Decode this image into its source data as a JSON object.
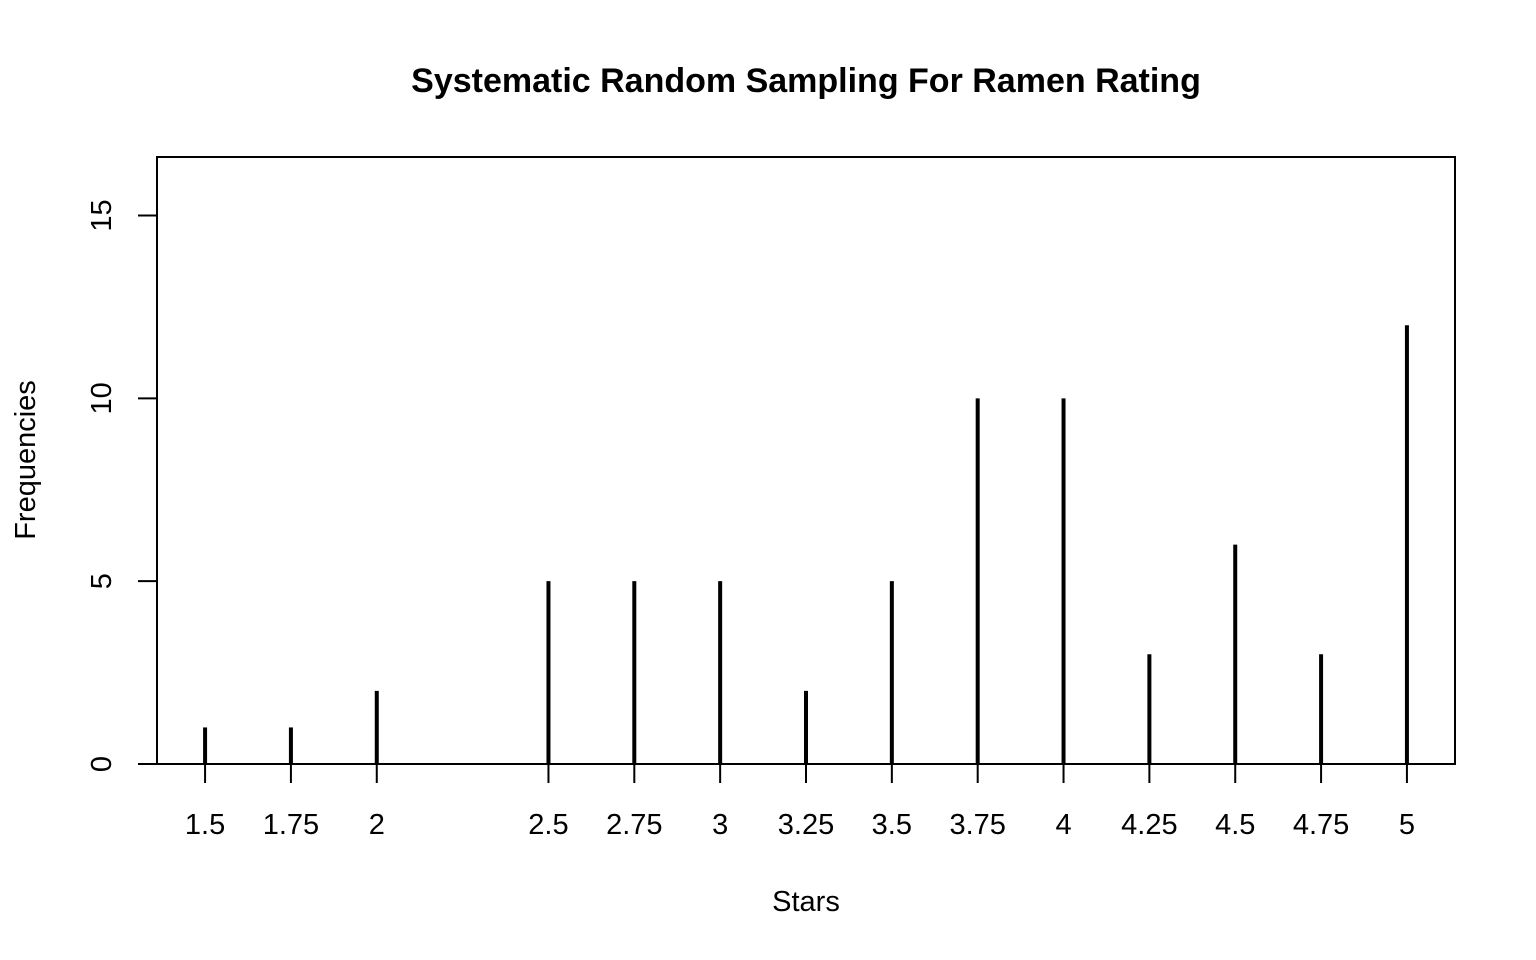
{
  "chart_data": {
    "type": "bar",
    "title": "Systematic Random Sampling For Ramen Rating",
    "xlabel": "Stars",
    "ylabel": "Frequencies",
    "x": [
      1.5,
      1.75,
      2,
      2.5,
      2.75,
      3,
      3.25,
      3.5,
      3.75,
      4,
      4.25,
      4.5,
      4.75,
      5
    ],
    "x_tick_labels": [
      "1.5",
      "1.75",
      "2",
      "2.5",
      "2.75",
      "3",
      "3.25",
      "3.5",
      "3.75",
      "4",
      "4.25",
      "4.5",
      "4.75",
      "5"
    ],
    "values": [
      1,
      1,
      2,
      5,
      5,
      5,
      2,
      5,
      10,
      10,
      3,
      6,
      3,
      12
    ],
    "y_ticks": [
      0,
      5,
      10,
      15
    ],
    "y_tick_labels": [
      "0",
      "5",
      "10",
      "15"
    ],
    "ylim": [
      0,
      16.6
    ],
    "xlim": [
      1.36,
      5.14
    ],
    "grid": false,
    "colors": {
      "bars": "#000000",
      "axes": "#000000",
      "background": "#ffffff"
    }
  }
}
